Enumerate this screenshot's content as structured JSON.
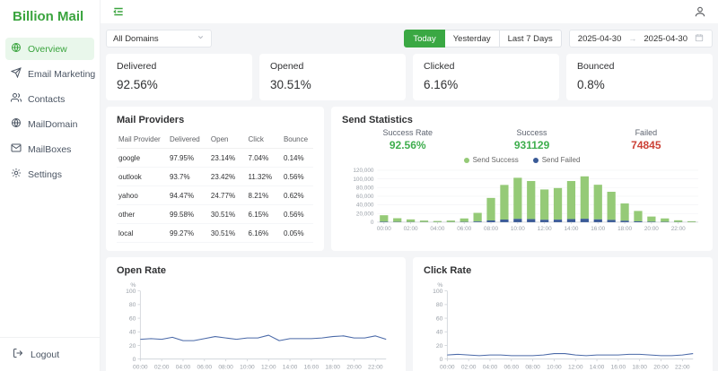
{
  "app": {
    "title": "Billion Mail"
  },
  "sidebar": {
    "items": [
      {
        "label": "Overview",
        "icon": "globe-icon",
        "active": true
      },
      {
        "label": "Email Marketing",
        "icon": "send-icon",
        "active": false
      },
      {
        "label": "Contacts",
        "icon": "users-icon",
        "active": false
      },
      {
        "label": "MailDomain",
        "icon": "globe-icon",
        "active": false
      },
      {
        "label": "MailBoxes",
        "icon": "mail-icon",
        "active": false
      },
      {
        "label": "Settings",
        "icon": "gear-icon",
        "active": false
      }
    ],
    "logout_label": "Logout"
  },
  "filters": {
    "domain_select": "All Domains",
    "range_buttons": [
      "Today",
      "Yesterday",
      "Last 7 Days"
    ],
    "active_range": "Today",
    "date_from": "2025-04-30",
    "date_to": "2025-04-30",
    "date_separator": "→"
  },
  "stat_cards": [
    {
      "label": "Delivered",
      "value": "92.56%"
    },
    {
      "label": "Opened",
      "value": "30.51%"
    },
    {
      "label": "Clicked",
      "value": "6.16%"
    },
    {
      "label": "Bounced",
      "value": "0.8%"
    }
  ],
  "mail_providers": {
    "title": "Mail Providers",
    "columns": [
      "Mail Provider",
      "Delivered",
      "Open",
      "Click",
      "Bounce"
    ],
    "rows": [
      [
        "google",
        "97.95%",
        "23.14%",
        "7.04%",
        "0.14%"
      ],
      [
        "outlook",
        "93.7%",
        "23.42%",
        "11.32%",
        "0.56%"
      ],
      [
        "yahoo",
        "94.47%",
        "24.77%",
        "8.21%",
        "0.62%"
      ],
      [
        "other",
        "99.58%",
        "30.51%",
        "6.15%",
        "0.56%"
      ],
      [
        "local",
        "99.27%",
        "30.51%",
        "6.16%",
        "0.05%"
      ]
    ]
  },
  "send_statistics": {
    "title": "Send Statistics",
    "summary": [
      {
        "label": "Success Rate",
        "value": "92.56%",
        "color": "#3fae4e"
      },
      {
        "label": "Success",
        "value": "931129",
        "color": "#3fae4e"
      },
      {
        "label": "Failed",
        "value": "74845",
        "color": "#cc4237"
      }
    ],
    "legend": [
      {
        "label": "Send Success",
        "color": "#95ca77"
      },
      {
        "label": "Send Failed",
        "color": "#3a5a97"
      }
    ]
  },
  "chart_data": [
    {
      "type": "bar",
      "title": "Send Statistics",
      "stacked": true,
      "x": [
        "00:00",
        "01:00",
        "02:00",
        "03:00",
        "04:00",
        "05:00",
        "06:00",
        "07:00",
        "08:00",
        "09:00",
        "10:00",
        "11:00",
        "12:00",
        "13:00",
        "14:00",
        "15:00",
        "16:00",
        "17:00",
        "18:00",
        "19:00",
        "20:00",
        "21:00",
        "22:00",
        "23:00"
      ],
      "x_label_every": 2,
      "series": [
        {
          "name": "Send Failed",
          "color": "#3a5a97",
          "values": [
            1000,
            600,
            400,
            250,
            180,
            250,
            600,
            1500,
            4000,
            6000,
            7500,
            7000,
            5500,
            5800,
            7000,
            7800,
            6400,
            5200,
            3200,
            1900,
            1000,
            650,
            320,
            160
          ]
        },
        {
          "name": "Send Success",
          "color": "#95ca77",
          "values": [
            15000,
            8500,
            6000,
            3500,
            2500,
            3500,
            8000,
            20000,
            52000,
            80000,
            95000,
            88000,
            70000,
            73000,
            88000,
            98000,
            80000,
            65000,
            40000,
            24000,
            12000,
            8000,
            4000,
            2000
          ]
        }
      ],
      "ylim": [
        0,
        120000
      ],
      "ytick_step": 20000,
      "xlabel": "",
      "ylabel": "",
      "legend_position": "top",
      "grid": true
    },
    {
      "type": "line",
      "title": "Open Rate",
      "x": [
        "00:00",
        "01:00",
        "02:00",
        "03:00",
        "04:00",
        "05:00",
        "06:00",
        "07:00",
        "08:00",
        "09:00",
        "10:00",
        "11:00",
        "12:00",
        "13:00",
        "14:00",
        "15:00",
        "16:00",
        "17:00",
        "18:00",
        "19:00",
        "20:00",
        "21:00",
        "22:00",
        "23:00"
      ],
      "x_label_every": 2,
      "values": [
        29,
        30,
        29,
        32,
        27,
        27,
        30,
        33,
        31,
        29,
        31,
        31,
        35,
        27,
        30,
        30,
        30,
        31,
        33,
        34,
        31,
        31,
        34,
        29
      ],
      "color": "#4a69a8",
      "ylim": [
        0,
        100
      ],
      "ytick_step": 20,
      "xlabel": "",
      "ylabel": "%",
      "grid": false
    },
    {
      "type": "line",
      "title": "Click Rate",
      "x": [
        "00:00",
        "01:00",
        "02:00",
        "03:00",
        "04:00",
        "05:00",
        "06:00",
        "07:00",
        "08:00",
        "09:00",
        "10:00",
        "11:00",
        "12:00",
        "13:00",
        "14:00",
        "15:00",
        "16:00",
        "17:00",
        "18:00",
        "19:00",
        "20:00",
        "21:00",
        "22:00",
        "23:00"
      ],
      "x_label_every": 2,
      "values": [
        6,
        7,
        6,
        5,
        6,
        6,
        5,
        5,
        5,
        6,
        8,
        8,
        6,
        5,
        6,
        6,
        6,
        7,
        7,
        6,
        5,
        5,
        6,
        8
      ],
      "color": "#4a69a8",
      "ylim": [
        0,
        100
      ],
      "ytick_step": 20,
      "xlabel": "",
      "ylabel": "%",
      "grid": false
    }
  ]
}
